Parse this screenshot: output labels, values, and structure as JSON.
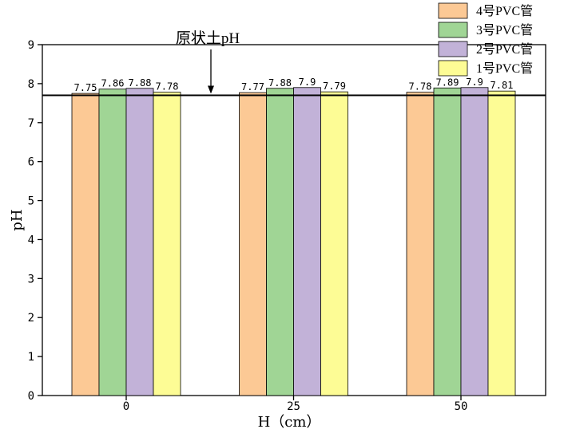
{
  "chart_data": {
    "type": "bar",
    "title": "",
    "xlabel": "H（cm）",
    "ylabel": "pH",
    "categories": [
      "0",
      "25",
      "50"
    ],
    "ylim": [
      0,
      9
    ],
    "yticks": [
      "0",
      "1",
      "2",
      "3",
      "4",
      "5",
      "6",
      "7",
      "8",
      "9"
    ],
    "grid": false,
    "legend_position": "top-right",
    "series": [
      {
        "name": "4号PVC管",
        "color": "#fcc995",
        "values": [
          7.75,
          7.77,
          7.78
        ],
        "labels": [
          "7.75",
          "7.77",
          "7.78"
        ]
      },
      {
        "name": "3号PVC管",
        "color": "#a0d595",
        "values": [
          7.86,
          7.88,
          7.89
        ],
        "labels": [
          "7.86",
          "7.88",
          "7.89"
        ]
      },
      {
        "name": "2号PVC管",
        "color": "#c2b2d8",
        "values": [
          7.88,
          7.9,
          7.9
        ],
        "labels": [
          "7.88",
          "7.9",
          "7.9"
        ]
      },
      {
        "name": "1号PVC管",
        "color": "#fdfc95",
        "values": [
          7.78,
          7.79,
          7.81
        ],
        "labels": [
          "7.78",
          "7.79",
          "7.81"
        ]
      }
    ],
    "reference_line": {
      "value": 7.7,
      "label": "原状土pH"
    }
  }
}
